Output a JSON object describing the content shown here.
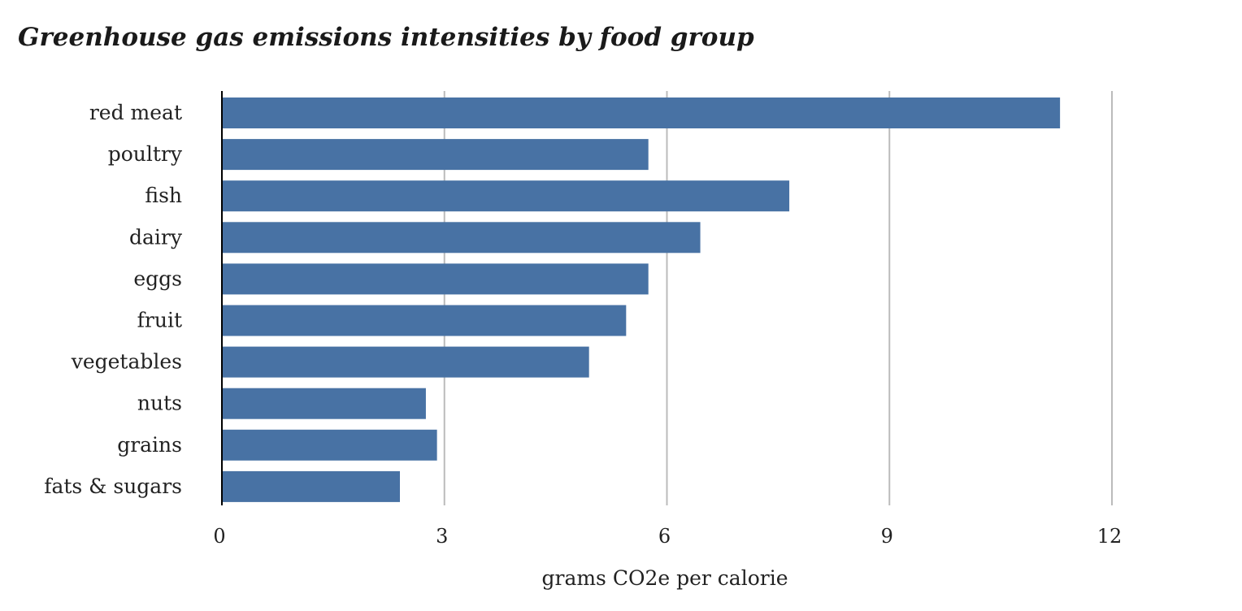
{
  "chart_data": {
    "type": "bar",
    "orientation": "horizontal",
    "title": "Greenhouse gas emissions intensities by food group",
    "xlabel": "grams CO2e per calorie",
    "ylabel": "",
    "categories": [
      "red meat",
      "poultry",
      "fish",
      "dairy",
      "eggs",
      "fruit",
      "vegetables",
      "nuts",
      "grains",
      "fats & sugars"
    ],
    "values": [
      11.3,
      5.75,
      7.65,
      6.45,
      5.75,
      5.45,
      4.95,
      2.75,
      2.9,
      2.4
    ],
    "xlim": [
      0,
      12
    ],
    "xticks": [
      0,
      3,
      6,
      9,
      12
    ],
    "grid": "vertical",
    "legend": "none",
    "bar_color": "#4872a4",
    "grid_color": "#bbbbbb",
    "axis_color": "#000000"
  }
}
